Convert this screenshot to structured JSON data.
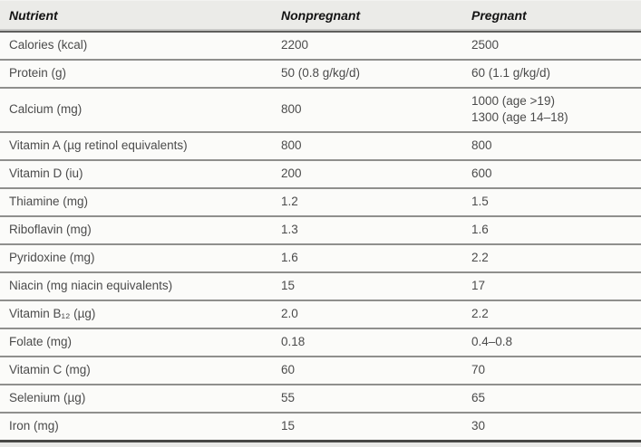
{
  "table": {
    "header": {
      "nutrient": "Nutrient",
      "nonpregnant": "Nonpregnant",
      "pregnant": "Pregnant"
    },
    "rows": [
      {
        "nutrient": "Calories (kcal)",
        "nonpregnant": "2200",
        "pregnant": "2500"
      },
      {
        "nutrient": "Protein (g)",
        "nonpregnant": "50 (0.8 g/kg/d)",
        "pregnant": "60 (1.1 g/kg/d)"
      },
      {
        "nutrient": "Calcium (mg)",
        "nonpregnant": "800",
        "pregnant": "1000 (age >19)\n1300 (age 14–18)"
      },
      {
        "nutrient": "Vitamin A (µg retinol equivalents)",
        "nonpregnant": "800",
        "pregnant": "800"
      },
      {
        "nutrient": "Vitamin D (iu)",
        "nonpregnant": "200",
        "pregnant": "600"
      },
      {
        "nutrient": "Thiamine (mg)",
        "nonpregnant": "1.2",
        "pregnant": "1.5"
      },
      {
        "nutrient": "Riboflavin (mg)",
        "nonpregnant": "1.3",
        "pregnant": "1.6"
      },
      {
        "nutrient": "Pyridoxine (mg)",
        "nonpregnant": "1.6",
        "pregnant": "2.2"
      },
      {
        "nutrient": "Niacin (mg niacin equivalents)",
        "nonpregnant": "15",
        "pregnant": "17"
      },
      {
        "nutrient": "Vitamin B₁₂ (µg)",
        "nonpregnant": "2.0",
        "pregnant": "2.2"
      },
      {
        "nutrient": "Folate (mg)",
        "nonpregnant": "0.18",
        "pregnant": "0.4–0.8"
      },
      {
        "nutrient": "Vitamin C (mg)",
        "nonpregnant": "60",
        "pregnant": "70"
      },
      {
        "nutrient": "Selenium (µg)",
        "nonpregnant": "55",
        "pregnant": "65"
      },
      {
        "nutrient": "Iron (mg)",
        "nonpregnant": "15",
        "pregnant": "30"
      }
    ],
    "colors": {
      "header_background": "#ebebe8",
      "body_background": "#fbfbf9",
      "row_separator": "#8f8f8d",
      "header_separator": "#5e5e5c",
      "bottom_border": "#474745",
      "body_text": "#4b4b4b",
      "header_text": "#131313"
    }
  }
}
